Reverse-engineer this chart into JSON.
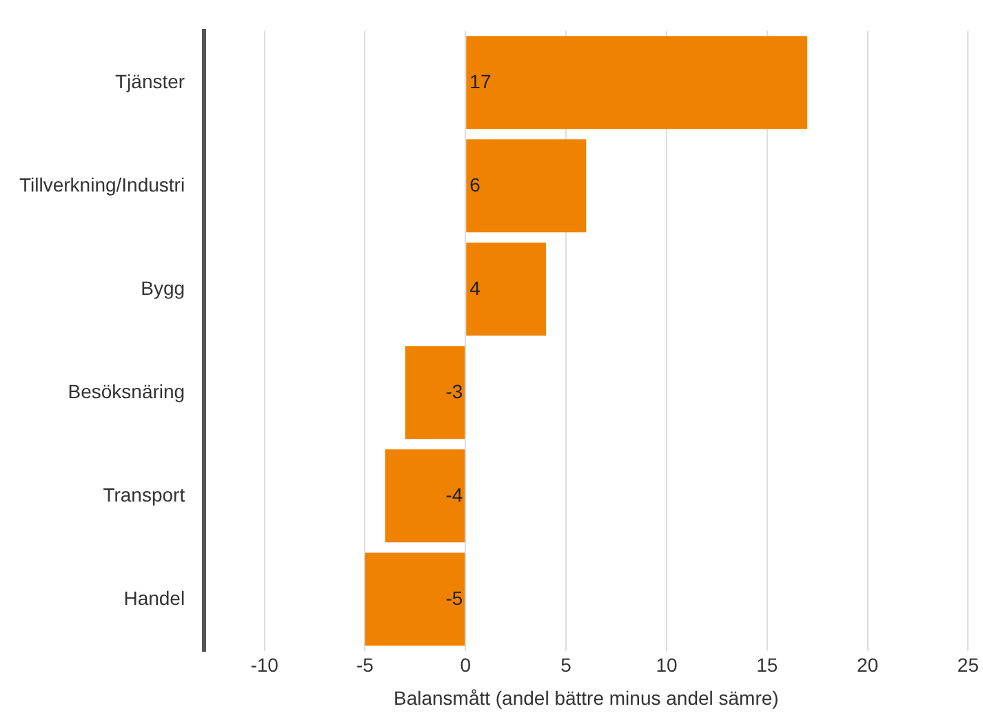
{
  "chart_data": {
    "type": "bar",
    "orientation": "horizontal",
    "categories": [
      "Tjänster",
      "Tillverkning/Industri",
      "Bygg",
      "Besöksnäring",
      "Transport",
      "Handel"
    ],
    "values": [
      17,
      6,
      4,
      -3,
      -4,
      -5
    ],
    "color": "#ef8200",
    "xlabel": "Balansmått (andel bättre minus andel sämre)",
    "xlim": [
      -13,
      25
    ],
    "xticks": [
      -10,
      -5,
      0,
      5,
      10,
      15,
      20,
      25
    ],
    "grid": "x",
    "data_labels": true,
    "legend": false
  }
}
